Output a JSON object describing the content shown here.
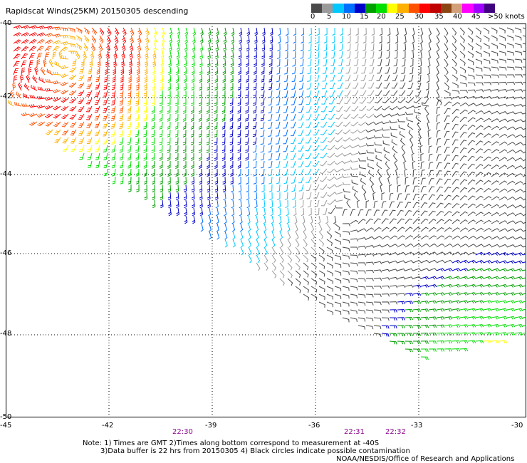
{
  "title": "Rapidscat Winds(25KM) 20150305 descending",
  "colorbar": {
    "colors": [
      "#4a4a4a",
      "#9a9a9a",
      "#00c8ff",
      "#0070ff",
      "#0000c8",
      "#00a000",
      "#00e000",
      "#ffff00",
      "#ffb000",
      "#ff5000",
      "#ff0000",
      "#c00000",
      "#8b4513",
      "#d2a079",
      "#ff00ff",
      "#a000ff",
      "#400080"
    ],
    "labels": [
      "0",
      "5",
      "10",
      "15",
      "20",
      "25",
      "30",
      "35",
      "40",
      "45",
      ">50 knots"
    ]
  },
  "map": {
    "lat_labels": [
      "-40",
      "-42",
      "-44",
      "-46",
      "-48",
      "-50"
    ],
    "lon_labels": [
      "-45",
      "-42",
      "-39",
      "-36",
      "-33",
      "-30"
    ],
    "times": [
      "22:30",
      "22:31",
      "22:32"
    ]
  },
  "notes": [
    "Note: 1) Times are GMT 2)Times along bottom correspond to measurement at -40S",
    "3)Data buffer is 22 hrs from 20150305 4) Black circles indicate possible contamination",
    "NOAA/NESDIS/Office of Research and Applications"
  ]
}
